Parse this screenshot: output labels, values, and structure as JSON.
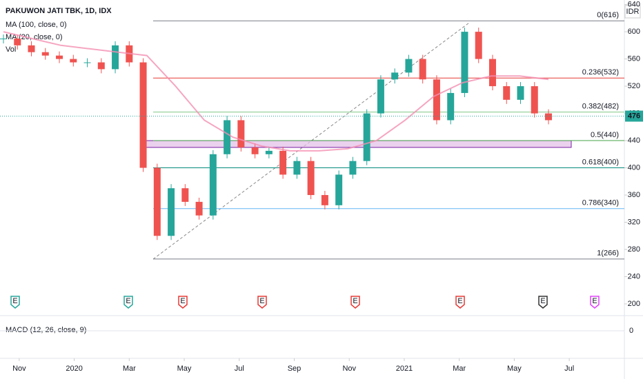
{
  "chart_data": {
    "type": "candlestick",
    "title": "PAKUWON JATI TBK, 1D, IDX",
    "indicators": [
      "MA (100, close, 0)",
      "MA (20, close, 0)",
      "Vol"
    ],
    "currency": "IDR",
    "series": [
      {
        "name": "Close",
        "values": [
          590,
          580,
          570,
          565,
          560,
          555,
          555,
          545,
          580,
          555,
          400,
          300,
          370,
          350,
          330,
          420,
          470,
          430,
          420,
          425,
          390,
          410,
          360,
          345,
          390,
          410,
          480,
          530,
          540,
          560,
          530,
          470,
          510,
          600,
          560,
          520,
          500,
          520,
          480,
          470
        ]
      },
      {
        "name": "MA (100, close, 0)",
        "color": "#f48fb1",
        "values": [
          600,
          590,
          580,
          575,
          570,
          565,
          520,
          470,
          445,
          432,
          425,
          425,
          428,
          440,
          470,
          505,
          525,
          535,
          535,
          530
        ]
      }
    ],
    "last_price": 476,
    "fib_levels": [
      {
        "value": 616,
        "label": "0(616)",
        "color": "#787b86"
      },
      {
        "value": 532,
        "label": "0.236(532)",
        "color": "#e53935"
      },
      {
        "value": 482,
        "label": "0.382(482)",
        "color": "#81c784"
      },
      {
        "value": 440,
        "label": "0.5(440)",
        "color": "#43a047"
      },
      {
        "value": 400,
        "label": "0.618(400)",
        "color": "#00897b"
      },
      {
        "value": 340,
        "label": "0.786(340)",
        "color": "#64b5f6"
      },
      {
        "value": 266,
        "label": "1(266)",
        "color": "#787b86"
      }
    ],
    "zone": [
      430,
      440
    ],
    "ylim": [
      200,
      640
    ],
    "yticks": [
      200,
      240,
      280,
      320,
      360,
      400,
      440,
      480,
      520,
      560,
      600,
      640
    ],
    "xlim": [
      "2019-10",
      "2021-08"
    ],
    "xticks": [
      {
        "value": "2019-11",
        "label": "Nov"
      },
      {
        "value": "2020-01",
        "label": "2020"
      },
      {
        "value": "2020-03",
        "label": "Mar"
      },
      {
        "value": "2020-05",
        "label": "May"
      },
      {
        "value": "2020-07",
        "label": "Jul"
      },
      {
        "value": "2020-09",
        "label": "Sep"
      },
      {
        "value": "2020-11",
        "label": "Nov"
      },
      {
        "value": "2021-01",
        "label": "2021"
      },
      {
        "value": "2021-03",
        "label": "Mar"
      },
      {
        "value": "2021-05",
        "label": "May"
      },
      {
        "value": "2021-07",
        "label": "Jul"
      }
    ],
    "events": [
      {
        "label": "E",
        "color": "#26a69a"
      },
      {
        "label": "E",
        "color": "#26a69a"
      },
      {
        "label": "E",
        "color": "#e53935"
      },
      {
        "label": "E",
        "color": "#e53935"
      },
      {
        "label": "E",
        "color": "#e53935"
      },
      {
        "label": "E",
        "color": "#e53935"
      },
      {
        "label": "E",
        "color": "#333333"
      },
      {
        "label": "E",
        "color": "#e040fb"
      }
    ],
    "macd": {
      "title": "MACD (12, 26, close, 9)",
      "yticks": [
        0
      ]
    }
  }
}
